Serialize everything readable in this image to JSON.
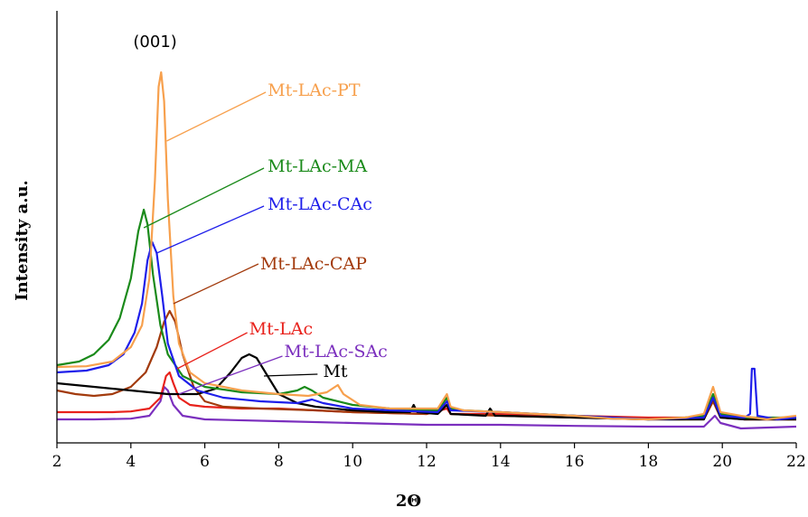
{
  "chart_data": {
    "type": "line",
    "title": "",
    "xlabel": "2Θ",
    "ylabel": "Intensity a.u.",
    "xlim": [
      2,
      22
    ],
    "ylim": [
      0,
      100
    ],
    "xticks": [
      2,
      4,
      6,
      8,
      10,
      12,
      14,
      16,
      18,
      20,
      22
    ],
    "grid": false,
    "legend": "inline labels with leader lines",
    "annotations": [
      {
        "text": "(001)",
        "x": 4.9,
        "y": 105
      }
    ],
    "series": [
      {
        "name": "Mt-LAc-PT",
        "color": "#F7A04D",
        "points": [
          [
            2,
            18.5
          ],
          [
            2.8,
            18.7
          ],
          [
            3.5,
            20
          ],
          [
            4.0,
            24
          ],
          [
            4.3,
            30
          ],
          [
            4.5,
            43
          ],
          [
            4.65,
            70
          ],
          [
            4.75,
            96
          ],
          [
            4.82,
            100
          ],
          [
            4.9,
            92
          ],
          [
            5.0,
            65
          ],
          [
            5.15,
            38
          ],
          [
            5.3,
            25
          ],
          [
            5.6,
            17
          ],
          [
            6.0,
            14
          ],
          [
            7.0,
            12
          ],
          [
            8.0,
            11
          ],
          [
            8.8,
            10.5
          ],
          [
            9.3,
            11.5
          ],
          [
            9.6,
            13.5
          ],
          [
            9.75,
            11
          ],
          [
            10.2,
            8
          ],
          [
            11,
            7
          ],
          [
            12.3,
            7
          ],
          [
            12.55,
            11
          ],
          [
            12.65,
            7.5
          ],
          [
            13,
            6.5
          ],
          [
            14,
            6
          ],
          [
            15,
            5.5
          ],
          [
            16,
            5
          ],
          [
            17,
            4.2
          ],
          [
            18,
            4
          ],
          [
            19,
            4.5
          ],
          [
            19.5,
            5.5
          ],
          [
            19.75,
            13
          ],
          [
            19.95,
            6
          ],
          [
            20.5,
            5
          ],
          [
            21.2,
            4
          ],
          [
            22,
            5
          ]
        ]
      },
      {
        "name": "Mt-LAc-MA",
        "color": "#1A8A1A",
        "points": [
          [
            2,
            19
          ],
          [
            2.6,
            20
          ],
          [
            3.0,
            22
          ],
          [
            3.4,
            26
          ],
          [
            3.7,
            32
          ],
          [
            4.0,
            43
          ],
          [
            4.2,
            56
          ],
          [
            4.35,
            62
          ],
          [
            4.45,
            58
          ],
          [
            4.6,
            44
          ],
          [
            4.8,
            30
          ],
          [
            5.0,
            22
          ],
          [
            5.4,
            16
          ],
          [
            6.0,
            13
          ],
          [
            7.0,
            11.5
          ],
          [
            8.0,
            11
          ],
          [
            8.5,
            12
          ],
          [
            8.7,
            13
          ],
          [
            8.9,
            12
          ],
          [
            9.2,
            10
          ],
          [
            10,
            8
          ],
          [
            11,
            7
          ],
          [
            12.3,
            6.5
          ],
          [
            12.55,
            10
          ],
          [
            12.65,
            7
          ],
          [
            13,
            6.5
          ],
          [
            14,
            6
          ],
          [
            15,
            5.5
          ],
          [
            16,
            5
          ],
          [
            17,
            4.5
          ],
          [
            18,
            4
          ],
          [
            19,
            4.5
          ],
          [
            19.5,
            5
          ],
          [
            19.75,
            11
          ],
          [
            19.95,
            5.5
          ],
          [
            20.5,
            4.5
          ],
          [
            22,
            4.5
          ]
        ]
      },
      {
        "name": "Mt-LAc-CAc",
        "color": "#1E1EEA",
        "points": [
          [
            2,
            17
          ],
          [
            2.8,
            17.5
          ],
          [
            3.4,
            19
          ],
          [
            3.8,
            22
          ],
          [
            4.1,
            28
          ],
          [
            4.3,
            36
          ],
          [
            4.45,
            48
          ],
          [
            4.58,
            53
          ],
          [
            4.7,
            50
          ],
          [
            4.85,
            38
          ],
          [
            5.0,
            25
          ],
          [
            5.3,
            16
          ],
          [
            5.8,
            12
          ],
          [
            6.5,
            10
          ],
          [
            7.5,
            9
          ],
          [
            8.5,
            8.5
          ],
          [
            8.9,
            9.5
          ],
          [
            9.2,
            8.5
          ],
          [
            10,
            7
          ],
          [
            11,
            6.5
          ],
          [
            12.3,
            6
          ],
          [
            12.55,
            9
          ],
          [
            12.65,
            6.5
          ],
          [
            14,
            6
          ],
          [
            16,
            5
          ],
          [
            18,
            4
          ],
          [
            19.5,
            4.5
          ],
          [
            19.75,
            10
          ],
          [
            19.95,
            5
          ],
          [
            20.6,
            4.5
          ],
          [
            20.75,
            5.5
          ],
          [
            20.8,
            18
          ],
          [
            20.87,
            18
          ],
          [
            20.95,
            5
          ],
          [
            21.5,
            4
          ],
          [
            22,
            4.5
          ]
        ]
      },
      {
        "name": "Mt-LAc-CAP",
        "color": "#A23A0C",
        "points": [
          [
            2,
            12
          ],
          [
            2.5,
            11
          ],
          [
            3.0,
            10.5
          ],
          [
            3.5,
            11
          ],
          [
            4.0,
            13
          ],
          [
            4.4,
            17
          ],
          [
            4.7,
            24
          ],
          [
            4.9,
            31
          ],
          [
            5.05,
            34
          ],
          [
            5.2,
            31
          ],
          [
            5.4,
            22
          ],
          [
            5.7,
            13
          ],
          [
            6.0,
            9
          ],
          [
            6.5,
            7.5
          ],
          [
            7.5,
            7
          ],
          [
            9,
            6.5
          ],
          [
            10,
            6
          ],
          [
            12,
            5.5
          ],
          [
            12.55,
            8
          ],
          [
            12.65,
            5.5
          ],
          [
            14,
            5
          ],
          [
            16,
            4.5
          ],
          [
            18,
            4
          ],
          [
            19.5,
            4
          ],
          [
            19.75,
            9
          ],
          [
            19.95,
            4.5
          ],
          [
            20.6,
            4
          ],
          [
            22,
            4
          ]
        ]
      },
      {
        "name": "Mt-LAc",
        "color": "#E8221C",
        "points": [
          [
            2,
            6
          ],
          [
            2.8,
            6
          ],
          [
            3.5,
            6
          ],
          [
            4.0,
            6.2
          ],
          [
            4.5,
            7
          ],
          [
            4.8,
            10
          ],
          [
            4.95,
            16
          ],
          [
            5.05,
            17
          ],
          [
            5.15,
            14
          ],
          [
            5.3,
            10
          ],
          [
            5.6,
            8
          ],
          [
            6,
            7.5
          ],
          [
            7,
            7
          ],
          [
            8,
            7
          ],
          [
            9,
            6.5
          ],
          [
            10,
            6
          ],
          [
            12,
            5.5
          ],
          [
            12.55,
            7
          ],
          [
            12.65,
            5.5
          ],
          [
            14,
            5.5
          ],
          [
            16,
            5
          ],
          [
            18,
            4.5
          ],
          [
            19.5,
            4.5
          ],
          [
            19.75,
            9
          ],
          [
            19.95,
            5
          ],
          [
            20.6,
            4
          ],
          [
            22,
            4
          ]
        ]
      },
      {
        "name": "Mt-LAc-SAc",
        "color": "#7B2FBE",
        "points": [
          [
            2,
            4
          ],
          [
            3,
            4
          ],
          [
            4,
            4.2
          ],
          [
            4.5,
            5
          ],
          [
            4.8,
            9
          ],
          [
            4.9,
            13
          ],
          [
            5.0,
            12
          ],
          [
            5.15,
            8
          ],
          [
            5.4,
            5
          ],
          [
            6,
            4
          ],
          [
            8,
            3.5
          ],
          [
            10,
            3
          ],
          [
            12,
            2.5
          ],
          [
            14,
            2.5
          ],
          [
            16,
            2.2
          ],
          [
            18,
            2
          ],
          [
            19.5,
            2
          ],
          [
            19.8,
            5
          ],
          [
            19.95,
            3
          ],
          [
            20.5,
            1.5
          ],
          [
            22,
            2
          ]
        ]
      },
      {
        "name": "Mt",
        "color": "#000000",
        "points": [
          [
            2,
            14
          ],
          [
            3,
            13
          ],
          [
            4,
            12
          ],
          [
            5,
            11
          ],
          [
            5.8,
            11
          ],
          [
            6.3,
            12.5
          ],
          [
            6.7,
            17
          ],
          [
            7.0,
            21
          ],
          [
            7.2,
            22
          ],
          [
            7.4,
            21
          ],
          [
            7.7,
            16
          ],
          [
            8.0,
            11
          ],
          [
            8.5,
            8.5
          ],
          [
            9,
            7.5
          ],
          [
            10,
            6.5
          ],
          [
            11,
            6
          ],
          [
            11.55,
            6
          ],
          [
            11.65,
            8
          ],
          [
            11.75,
            6
          ],
          [
            12.3,
            5.5
          ],
          [
            12.55,
            8
          ],
          [
            12.65,
            5.5
          ],
          [
            13.6,
            5
          ],
          [
            13.72,
            7
          ],
          [
            13.85,
            5
          ],
          [
            14,
            5
          ],
          [
            16,
            4.5
          ],
          [
            18,
            4
          ],
          [
            19.5,
            4
          ],
          [
            19.75,
            10
          ],
          [
            19.95,
            4.5
          ],
          [
            20.6,
            4
          ],
          [
            22,
            4
          ]
        ]
      }
    ],
    "series_labels": [
      {
        "series": "Mt-LAc-PT",
        "text": "Mt-LAc-PT",
        "x": 7.7,
        "y": 93.5,
        "line_from": [
          4.97,
          81
        ],
        "line_to": [
          7.65,
          94.5
        ]
      },
      {
        "series": "Mt-LAc-MA",
        "text": "Mt-LAc-MA",
        "x": 7.7,
        "y": 72.5,
        "line_from": [
          4.35,
          57
        ],
        "line_to": [
          7.6,
          73.5
        ]
      },
      {
        "series": "Mt-LAc-CAc",
        "text": "Mt-LAc-CAc",
        "x": 7.7,
        "y": 62,
        "line_from": [
          4.7,
          50
        ],
        "line_to": [
          7.6,
          63
        ]
      },
      {
        "series": "Mt-LAc-CAP",
        "text": "Mt-LAc-CAP",
        "x": 7.5,
        "y": 45.5,
        "line_from": [
          5.15,
          36
        ],
        "line_to": [
          7.45,
          47
        ]
      },
      {
        "series": "Mt-LAc",
        "text": "Mt-LAc",
        "x": 7.2,
        "y": 27.5,
        "line_from": [
          5.25,
          18
        ],
        "line_to": [
          7.15,
          28
        ]
      },
      {
        "series": "Mt-LAc-SAc",
        "text": "Mt-LAc-SAc",
        "x": 8.15,
        "y": 21.2,
        "line_from": [
          5.3,
          11
        ],
        "line_to": [
          8.1,
          21.5
        ]
      },
      {
        "series": "Mt",
        "text": "Mt",
        "x": 9.2,
        "y": 15.8,
        "line_from": [
          7.6,
          16
        ],
        "line_to": [
          9.05,
          16.5
        ]
      }
    ]
  }
}
